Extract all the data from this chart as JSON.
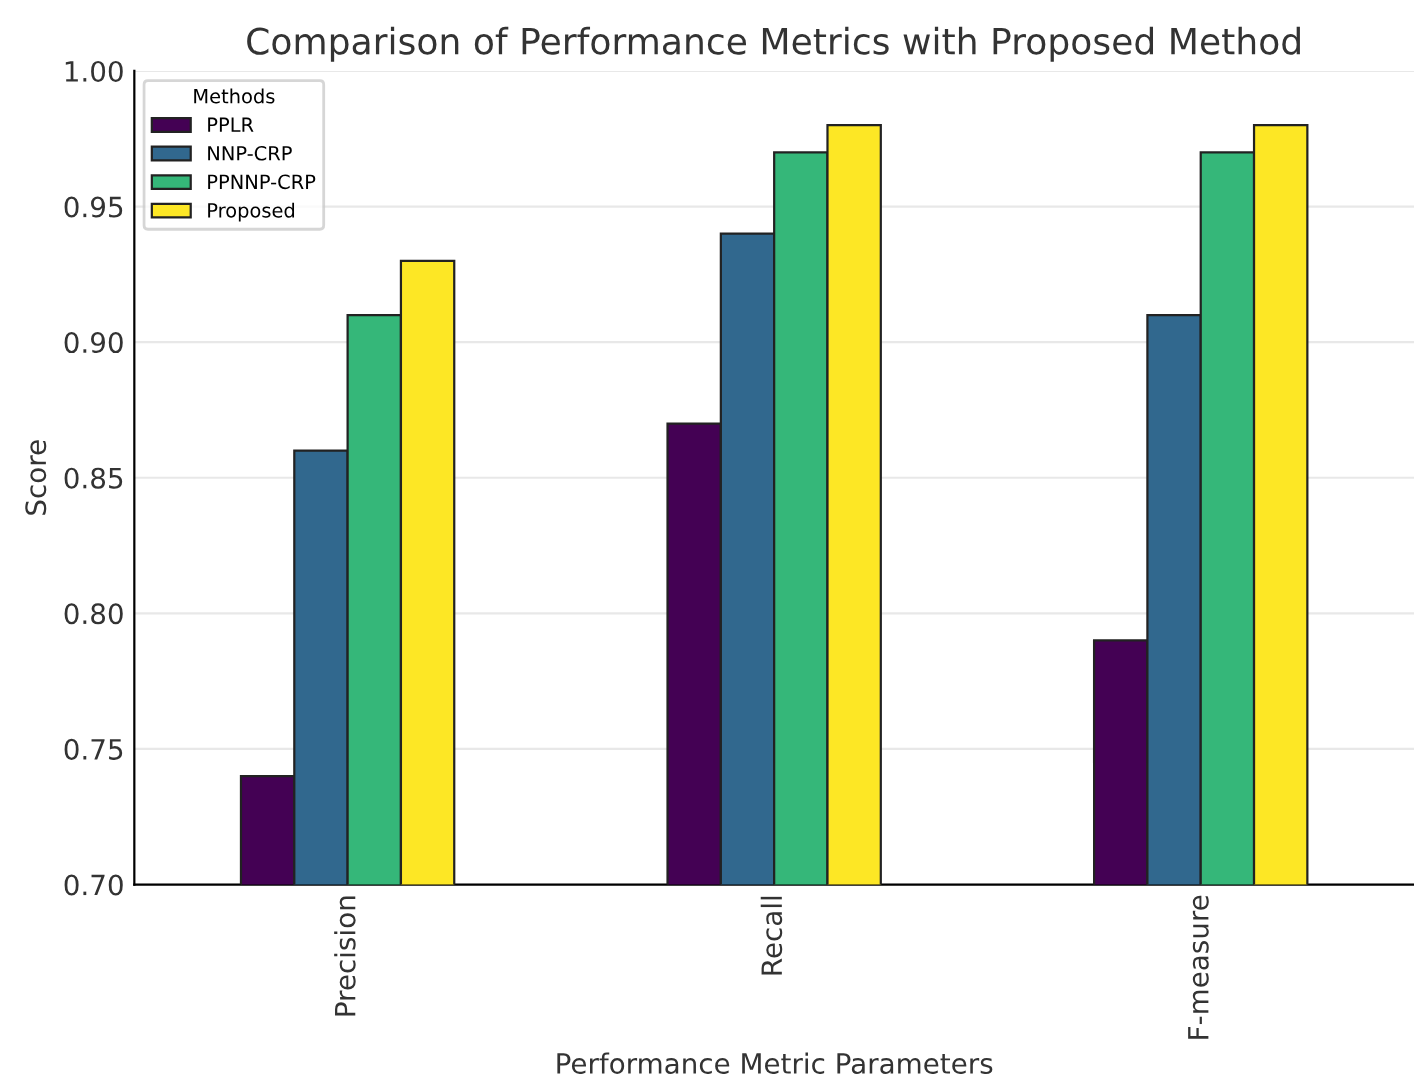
{
  "chart_data": {
    "type": "bar",
    "title": "Comparison of Performance Metrics with Proposed Method",
    "xlabel": "Performance Metric Parameters",
    "ylabel": "Score",
    "legend_title": "Methods",
    "categories": [
      "Precision",
      "Recall",
      "F-measure"
    ],
    "series": [
      {
        "name": "PPLR",
        "color": "#440154",
        "values": [
          0.74,
          0.87,
          0.79
        ]
      },
      {
        "name": "NNP-CRP",
        "color": "#31688e",
        "values": [
          0.86,
          0.94,
          0.91
        ]
      },
      {
        "name": "PPNNP-CRP",
        "color": "#35b779",
        "values": [
          0.91,
          0.97,
          0.97
        ]
      },
      {
        "name": "Proposed",
        "color": "#fde725",
        "values": [
          0.93,
          0.98,
          0.98
        ]
      }
    ],
    "ylim": [
      0.7,
      1.0
    ],
    "yticks": [
      {
        "value": 0.7,
        "label": "0.70"
      },
      {
        "value": 0.75,
        "label": "0.75"
      },
      {
        "value": 0.8,
        "label": "0.80"
      },
      {
        "value": 0.85,
        "label": "0.85"
      },
      {
        "value": 0.9,
        "label": "0.90"
      },
      {
        "value": 0.95,
        "label": "0.95"
      },
      {
        "value": 1.0,
        "label": "1.00"
      }
    ],
    "grid": "y",
    "legend": "top left"
  }
}
